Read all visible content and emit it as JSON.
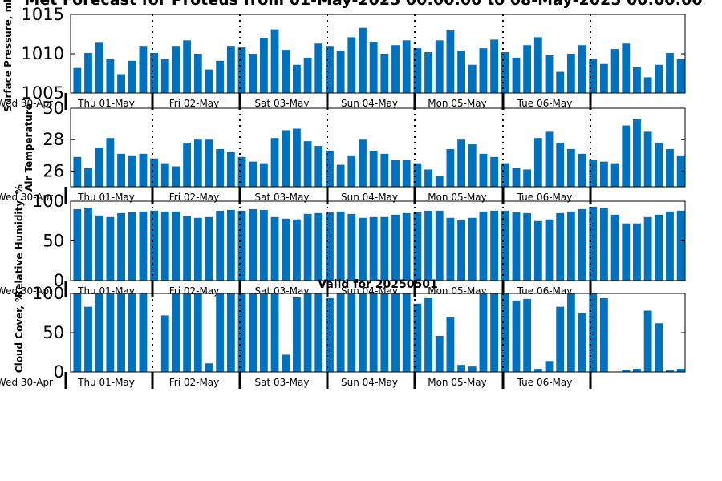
{
  "title": "Met Forecast for Proteus from 01-May-2025 00:00:00 to 08-May-2025 00:00:00",
  "valid_label": "Valid for 20250501",
  "colors": {
    "bar": "#0072bd",
    "axis": "#000000",
    "divider": "#000000"
  },
  "chart_data": [
    {
      "type": "bar",
      "ylabel": "Surface Pressure, mb",
      "ylim": [
        1005,
        1015
      ],
      "yticks": [
        "1005",
        "1010",
        "1015"
      ],
      "ytick_values": [
        1005,
        1010,
        1015
      ],
      "day_labels": [
        "Thu 01-May",
        "Fri 02-May",
        "Sat 03-May",
        "Sun 04-May",
        "Mon 05-May",
        "Tue 06-May"
      ],
      "edge_label": "Wed 30-Apr",
      "values": [
        1008.2,
        1010.1,
        1011.4,
        1009.3,
        1007.4,
        1009.1,
        1010.9,
        1010.1,
        1009.3,
        1010.9,
        1011.7,
        1010.0,
        1008.0,
        1009.1,
        1010.9,
        1010.8,
        1010.0,
        1012.0,
        1013.1,
        1010.5,
        1008.6,
        1009.5,
        1011.3,
        1010.9,
        1010.4,
        1012.1,
        1013.3,
        1011.5,
        1010.0,
        1011.1,
        1011.7,
        1010.7,
        1010.2,
        1011.7,
        1013.0,
        1010.4,
        1008.6,
        1010.7,
        1011.8,
        1010.2,
        1009.5,
        1011.1,
        1012.1,
        1009.8,
        1007.7,
        1010.0,
        1011.1,
        1009.3,
        1008.7,
        1010.6,
        1011.3,
        1008.3,
        1007.0,
        1008.6,
        1010.1,
        1009.3
      ]
    },
    {
      "type": "bar",
      "ylabel": "Air Temperature",
      "ylim": [
        25,
        30
      ],
      "yticks": [
        "26",
        "28",
        "30"
      ],
      "ytick_values": [
        26,
        28,
        30
      ],
      "day_labels": [
        "Thu 01-May",
        "Fri 02-May",
        "Sat 03-May",
        "Sun 04-May",
        "Mon 05-May",
        "Tue 06-May"
      ],
      "edge_label": "Wed 30-Apr",
      "values": [
        26.9,
        26.2,
        27.5,
        28.1,
        27.1,
        27.0,
        27.1,
        26.8,
        26.5,
        26.3,
        27.8,
        28.0,
        28.0,
        27.4,
        27.2,
        26.9,
        26.6,
        26.5,
        28.1,
        28.6,
        28.7,
        27.9,
        27.6,
        27.3,
        26.4,
        27.0,
        28.0,
        27.3,
        27.1,
        26.7,
        26.7,
        26.5,
        26.1,
        25.7,
        27.4,
        28.0,
        27.7,
        27.1,
        26.9,
        26.5,
        26.2,
        26.1,
        28.1,
        28.5,
        27.8,
        27.4,
        27.1,
        26.7,
        26.6,
        26.5,
        28.9,
        29.3,
        28.5,
        27.8,
        27.4,
        27.0
      ]
    },
    {
      "type": "bar",
      "ylabel": "Relative Humidity, %",
      "ylim": [
        0,
        100
      ],
      "yticks": [
        "0",
        "50",
        "100"
      ],
      "ytick_values": [
        0,
        50,
        100
      ],
      "day_labels": [
        "Thu 01-May",
        "Fri 02-May",
        "Sat 03-May",
        "Sun 04-May",
        "Mon 05-May",
        "Tue 06-May"
      ],
      "edge_label": "Wed 30-Apr",
      "values": [
        90,
        92,
        82,
        80,
        85,
        86,
        87,
        88,
        87,
        87,
        81,
        79,
        80,
        88,
        89,
        88,
        90,
        89,
        80,
        78,
        77,
        84,
        85,
        86,
        87,
        84,
        79,
        80,
        80,
        83,
        85,
        86,
        88,
        88,
        79,
        76,
        79,
        87,
        88,
        88,
        86,
        85,
        75,
        77,
        85,
        87,
        90,
        93,
        91,
        83,
        72,
        72,
        80,
        83,
        87,
        88
      ]
    },
    {
      "type": "bar",
      "ylabel": "Cloud Cover, %",
      "ylim": [
        0,
        100
      ],
      "yticks": [
        "0",
        "50",
        "100"
      ],
      "ytick_values": [
        0,
        50,
        100
      ],
      "day_labels": [
        "Thu 01-May",
        "Fri 02-May",
        "Sat 03-May",
        "Sun 04-May",
        "Mon 05-May",
        "Tue 06-May"
      ],
      "edge_label": "Wed 30-Apr",
      "values": [
        100,
        83,
        100,
        100,
        100,
        100,
        100,
        0,
        72,
        100,
        100,
        100,
        11,
        100,
        100,
        100,
        100,
        100,
        100,
        22,
        95,
        100,
        100,
        94,
        100,
        100,
        100,
        100,
        100,
        100,
        100,
        87,
        94,
        46,
        70,
        9,
        7,
        100,
        100,
        100,
        91,
        93,
        4,
        14,
        83,
        100,
        75,
        100,
        94,
        0,
        3,
        4,
        78,
        62,
        2,
        4
      ]
    }
  ]
}
